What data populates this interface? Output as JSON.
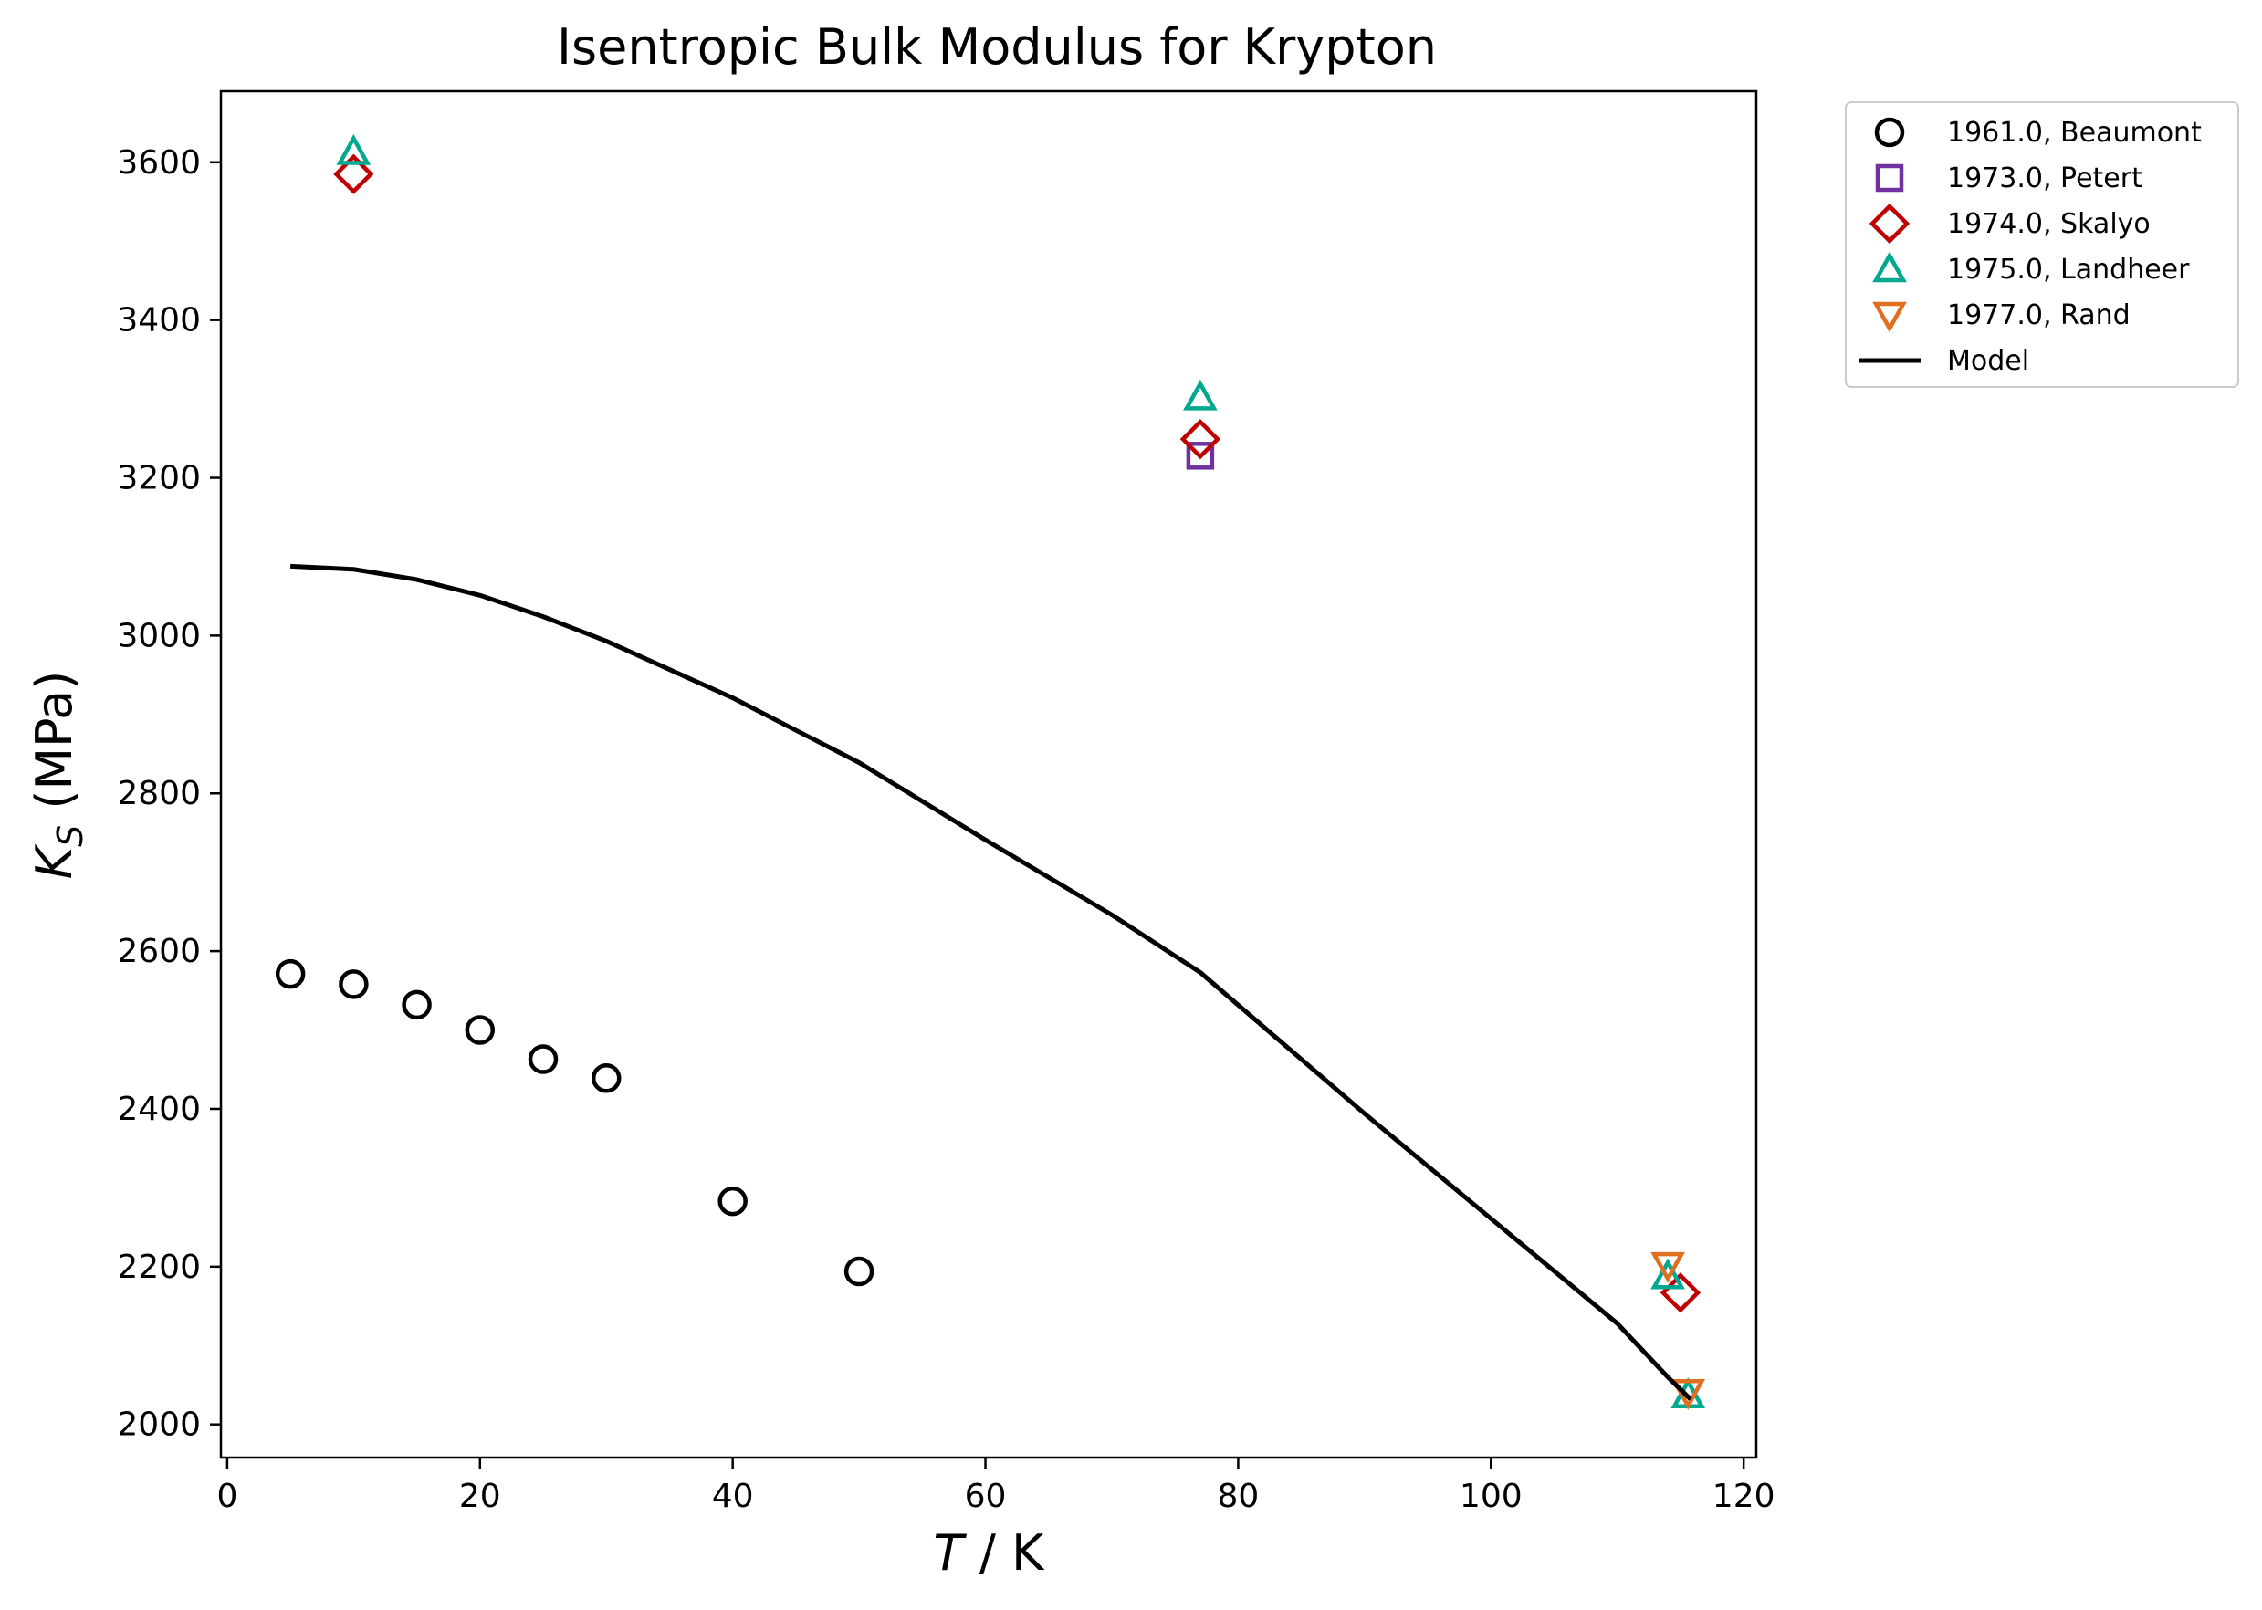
{
  "chart_data": {
    "type": "scatter",
    "title": "Isentropic Bulk Modulus for Krypton",
    "xlabel_var": "T",
    "xlabel_unit": " / K",
    "ylabel_var": "K",
    "ylabel_sub": "S",
    "ylabel_unit": " (MPa)",
    "xlim": [
      -0.5,
      121
    ],
    "ylim": [
      1958,
      3690
    ],
    "xticks": [
      0,
      20,
      40,
      60,
      80,
      100,
      120
    ],
    "yticks": [
      2000,
      2200,
      2400,
      2600,
      2800,
      3000,
      3200,
      3400,
      3600
    ],
    "grid": false,
    "legend_position": "outside top-right",
    "series": [
      {
        "name": "1961.0, Beaumont",
        "marker": "circle",
        "color": "#000000",
        "x": [
          5,
          10,
          15,
          20,
          25,
          30,
          40,
          50
        ],
        "y": [
          2571,
          2558,
          2532,
          2500,
          2463,
          2439,
          2283,
          2194
        ]
      },
      {
        "name": "1973.0, Petert",
        "marker": "square",
        "color": "#7030a0",
        "x": [
          77
        ],
        "y": [
          3228
        ]
      },
      {
        "name": "1974.0, Skalyo",
        "marker": "diamond",
        "color": "#c00000",
        "x": [
          10,
          77,
          115
        ],
        "y": [
          3585,
          3249,
          2167
        ]
      },
      {
        "name": "1975.0, Landheer",
        "marker": "triangle-up",
        "color": "#00a891",
        "x": [
          10,
          77,
          114,
          115.6
        ],
        "y": [
          3613,
          3302,
          2188,
          2037
        ]
      },
      {
        "name": "1977.0, Rand",
        "marker": "triangle-down",
        "color": "#e07020",
        "x": [
          114,
          115.6
        ],
        "y": [
          2202,
          2041
        ]
      },
      {
        "name": "Model",
        "marker": "line",
        "color": "#000000",
        "x": [
          5,
          10,
          15,
          20,
          25,
          30,
          40,
          50,
          60,
          70,
          77,
          90,
          100,
          110,
          114,
          115.8
        ],
        "y": [
          3088,
          3084,
          3071,
          3051,
          3024,
          2993,
          2921,
          2839,
          2741,
          2646,
          2573,
          2394,
          2261,
          2128,
          2060,
          2032
        ]
      }
    ]
  }
}
